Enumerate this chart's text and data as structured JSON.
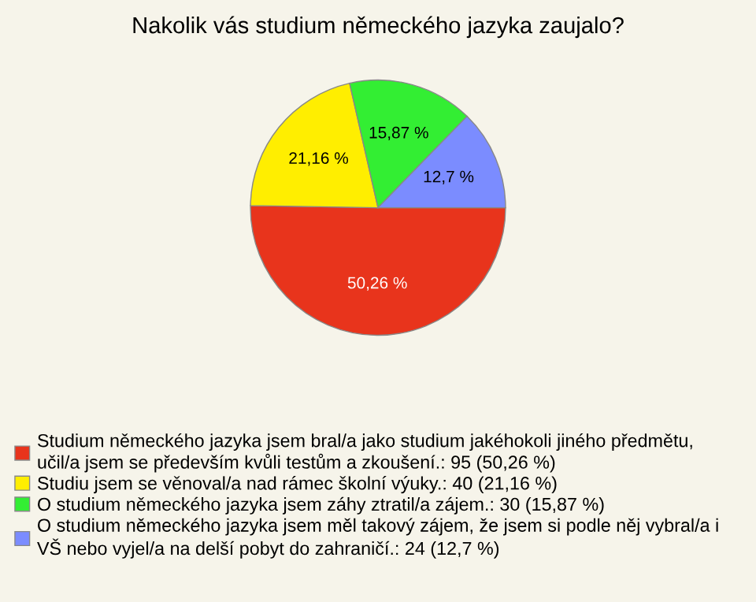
{
  "chart_data": {
    "type": "pie",
    "title": "Nakolik vás studium německého jazyka zaujalo?",
    "categories": [
      "Studium německého jazyka jsem bral/a jako studium jakéhokoli jiného předmětu, učil/a jsem se především kvůli testům a zkoušení.: 95 (50,26 %)",
      "Studiu jsem se věnoval/a nad rámec školní výuky.: 40 (21,16 %)",
      "O studium německého jazyka jsem záhy ztratil/a zájem.: 30 (15,87 %)",
      "O studium německého jazyka jsem měl takový zájem, že jsem si podle něj vybral/a i VŠ nebo vyjel/a na delší pobyt do zahraničí.: 24 (12,7 %)"
    ],
    "values": [
      50.26,
      21.16,
      15.87,
      12.7
    ],
    "value_labels": [
      "50,26 %",
      "21,16 %",
      "15,87 %",
      "12,7 %"
    ],
    "colors": [
      "#e8341c",
      "#ffee00",
      "#33ee33",
      "#7b8cff"
    ],
    "legend": "bottom"
  }
}
